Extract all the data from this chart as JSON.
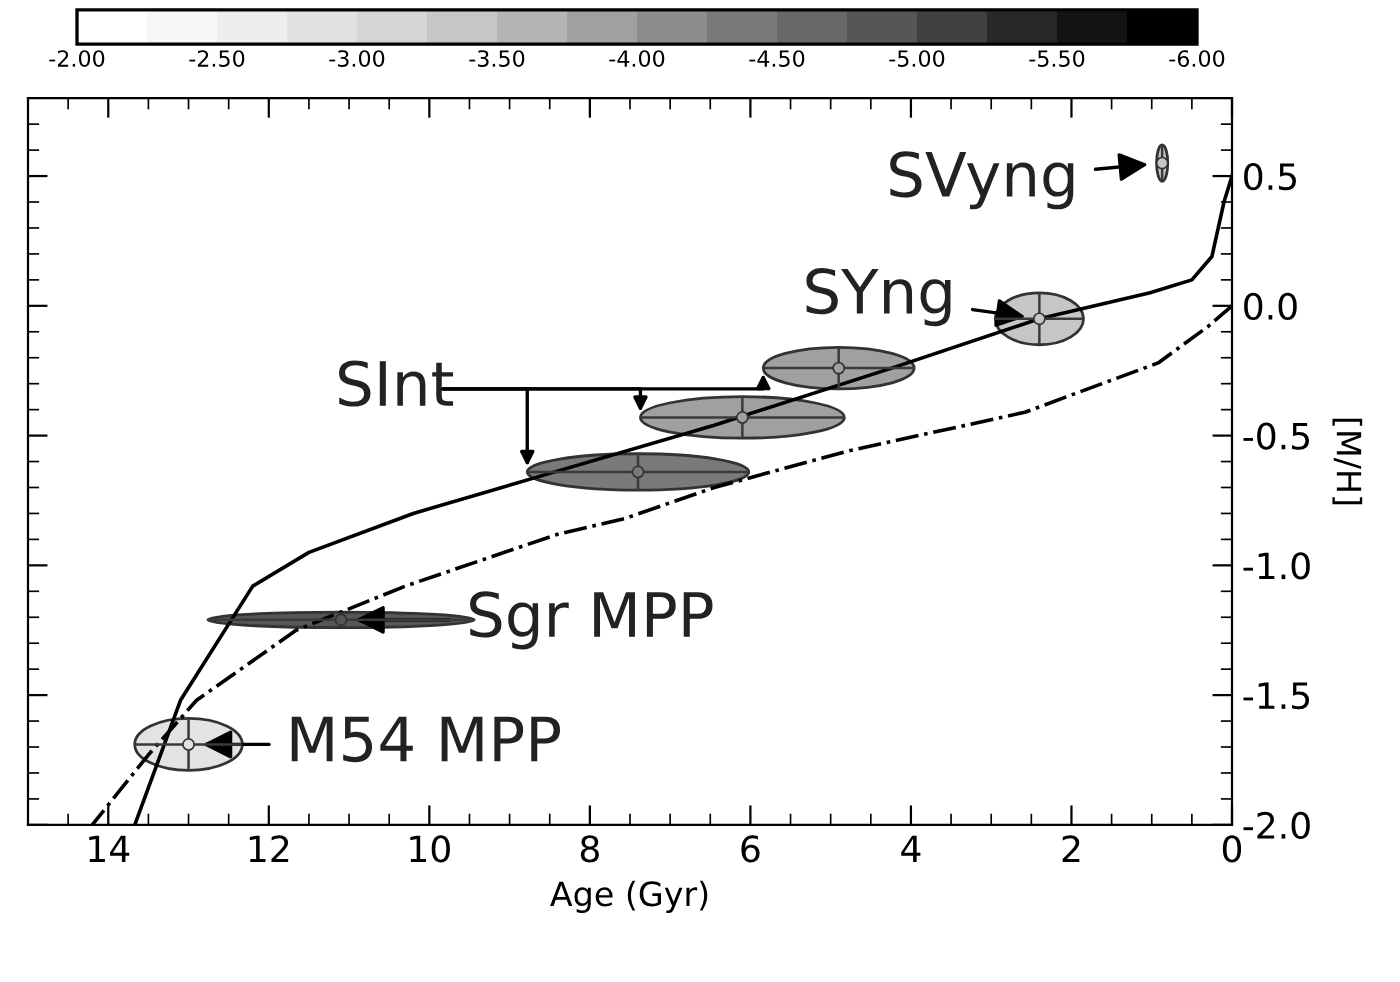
{
  "chart_data": {
    "type": "scatter",
    "xlabel": "Age (Gyr)",
    "ylabel": "[M/H]",
    "xlim": [
      15,
      0
    ],
    "ylim": [
      -2.0,
      0.8
    ],
    "xticks": [
      0,
      2,
      4,
      6,
      8,
      10,
      12,
      14
    ],
    "yticks": [
      {
        "value": 0.5,
        "label": "0.5"
      },
      {
        "value": 0.0,
        "label": "0.0"
      },
      {
        "value": -0.5,
        "label": "-0.5"
      },
      {
        "value": -1.0,
        "label": "-1.0"
      },
      {
        "value": -1.5,
        "label": "-1.5"
      },
      {
        "value": -2.0,
        "label": "-2.0"
      }
    ],
    "clim": [
      -2.0,
      -6.0
    ],
    "cticks": [
      {
        "value": -2.0,
        "label": "-2.00"
      },
      {
        "value": -2.5,
        "label": "-2.50"
      },
      {
        "value": -3.0,
        "label": "-3.00"
      },
      {
        "value": -3.5,
        "label": "-3.50"
      },
      {
        "value": -4.0,
        "label": "-4.00"
      },
      {
        "value": -4.5,
        "label": "-4.50"
      },
      {
        "value": -5.0,
        "label": "-5.00"
      },
      {
        "value": -5.5,
        "label": "-5.50"
      },
      {
        "value": -6.0,
        "label": "-6.00"
      }
    ],
    "grid": false,
    "legend": false,
    "series": [
      {
        "type": "scatter",
        "x": [
          0.87,
          2.4,
          4.9,
          6.1,
          7.4,
          11.1,
          13.0
        ],
        "values": [
          0.55,
          -0.05,
          -0.24,
          -0.43,
          -0.64,
          -1.21,
          -1.69
        ],
        "xerrors": [
          0.07,
          0.55,
          0.94,
          1.27,
          1.38,
          1.66,
          0.67
        ],
        "errors": [
          0.07,
          0.1,
          0.08,
          0.08,
          0.07,
          0.03,
          0.1
        ],
        "colors": [
          "#c6c6c6",
          "#c6c6c6",
          "#a0a0a0",
          "#a0a0a0",
          "#7a7a7a",
          "#565656",
          "#e3e3e3"
        ]
      },
      {
        "type": "line",
        "color": "#000000",
        "line_style": "solid",
        "x": [
          0,
          0.1,
          0.25,
          0.5,
          1.02,
          2.4,
          4.24,
          6.45,
          8.66,
          10.2,
          11.5,
          12.2,
          13.1,
          13.67
        ],
        "values": [
          0.5,
          0.4,
          0.19,
          0.1,
          0.05,
          -0.05,
          -0.24,
          -0.46,
          -0.66,
          -0.8,
          -0.95,
          -1.08,
          -1.52,
          -2.0
        ]
      },
      {
        "type": "line",
        "color": "#000000",
        "line_style": "dashdot",
        "x": [
          0.0,
          0.3,
          0.92,
          2.58,
          4.79,
          6.45,
          7.57,
          8.4,
          10.3,
          11.66,
          12.9,
          13.5,
          14.2
        ],
        "values": [
          0.0,
          -0.08,
          -0.22,
          -0.41,
          -0.56,
          -0.7,
          -0.82,
          -0.88,
          -1.08,
          -1.25,
          -1.52,
          -1.73,
          -2.0
        ]
      }
    ],
    "annotations": [
      {
        "text": "SVyng",
        "x": 0.87,
        "y": 0.55
      },
      {
        "text": "SYng",
        "x": 2.4,
        "y": -0.05
      },
      "SInt",
      {
        "text": "Sgr MPP",
        "x": 11.1,
        "y": -1.21
      },
      {
        "text": "M54 MPP",
        "x": 13.0,
        "y": -1.69
      }
    ]
  }
}
